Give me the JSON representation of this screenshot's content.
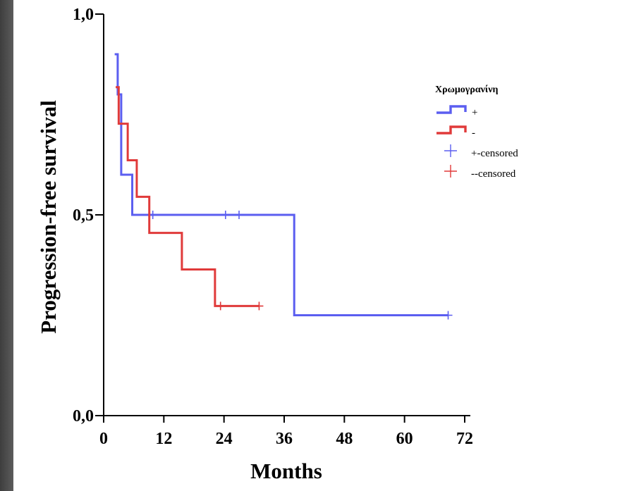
{
  "chart_data": {
    "type": "line",
    "subtype": "kaplan-meier-step",
    "xlabel": "Months",
    "ylabel": "Progression-free survival",
    "xlim": [
      0,
      72
    ],
    "ylim": [
      0,
      1
    ],
    "xticks": [
      0,
      12,
      24,
      36,
      48,
      60,
      72
    ],
    "xtick_labels": [
      "0",
      "12",
      "24",
      "36",
      "48",
      "60",
      "72"
    ],
    "yticks": [
      0,
      0.5,
      1
    ],
    "ytick_labels": [
      "0,0",
      "0,5",
      "1,0"
    ],
    "grid": false,
    "legend": {
      "title": "Χρωμογρανίνη",
      "placement": "top-right",
      "entries": [
        {
          "label": "+",
          "kind": "line",
          "color": "#5b5ef0"
        },
        {
          "label": "-",
          "kind": "line",
          "color": "#e03a3a"
        },
        {
          "label": "+-censored",
          "kind": "censor",
          "color": "#5b5ef0"
        },
        {
          "label": "--censored",
          "kind": "censor",
          "color": "#e03a3a"
        }
      ]
    },
    "series": [
      {
        "name": "+",
        "color": "#5b5ef0",
        "steps": [
          [
            2.2,
            0.9
          ],
          [
            2.8,
            0.8
          ],
          [
            3.5,
            0.6
          ],
          [
            5.7,
            0.5
          ],
          [
            38.0,
            0.25
          ],
          [
            68.7,
            0.25
          ]
        ],
        "censored": [
          [
            9.8,
            0.5
          ],
          [
            24.3,
            0.5
          ],
          [
            27.0,
            0.5
          ],
          [
            68.7,
            0.25
          ]
        ]
      },
      {
        "name": "-",
        "color": "#e03a3a",
        "steps": [
          [
            2.4,
            0.818
          ],
          [
            3.0,
            0.727
          ],
          [
            4.8,
            0.636
          ],
          [
            6.6,
            0.545
          ],
          [
            9.1,
            0.455
          ],
          [
            15.6,
            0.364
          ],
          [
            22.2,
            0.273
          ],
          [
            31.0,
            0.273
          ]
        ],
        "censored": [
          [
            23.3,
            0.273
          ],
          [
            31.0,
            0.273
          ]
        ]
      }
    ]
  }
}
